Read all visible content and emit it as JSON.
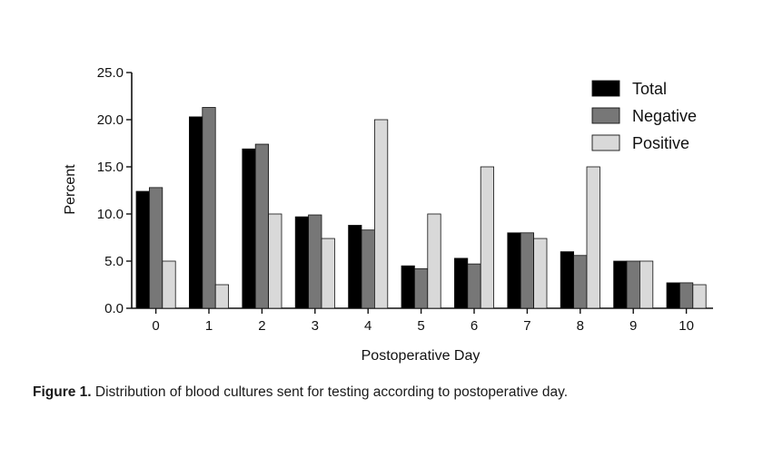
{
  "chart_data": {
    "type": "bar",
    "xlabel": "Postoperative Day",
    "ylabel": "Percent",
    "ylim": [
      0,
      25
    ],
    "yticks": [
      "0.0",
      "5.0",
      "10.0",
      "15.0",
      "20.0",
      "25.0"
    ],
    "categories": [
      "0",
      "1",
      "2",
      "3",
      "4",
      "5",
      "6",
      "7",
      "8",
      "9",
      "10"
    ],
    "legend_position": "top-right",
    "grid": false,
    "series": [
      {
        "name": "Total",
        "color": "#000000",
        "values": [
          12.4,
          20.3,
          16.9,
          9.7,
          8.8,
          4.5,
          5.3,
          8.0,
          6.0,
          5.0,
          2.7
        ]
      },
      {
        "name": "Negative",
        "color": "#777777",
        "values": [
          12.8,
          21.3,
          17.4,
          9.9,
          8.3,
          4.2,
          4.7,
          8.0,
          5.6,
          5.0,
          2.7
        ]
      },
      {
        "name": "Positive",
        "color": "#d9d9d9",
        "values": [
          5.0,
          2.5,
          10.0,
          7.4,
          20.0,
          10.0,
          15.0,
          7.4,
          15.0,
          5.0,
          2.5
        ]
      }
    ]
  },
  "caption": {
    "label": "Figure 1.",
    "text": " Distribution of blood cultures sent for testing according to postoperative day."
  }
}
